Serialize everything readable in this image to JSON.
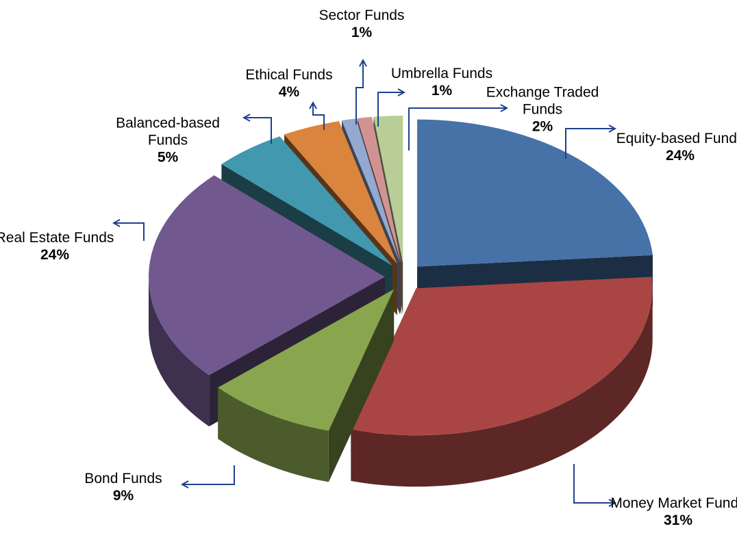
{
  "chart_data": {
    "type": "pie",
    "categories": [
      "Equity-based Funds",
      "Money Market Funds",
      "Bond Funds",
      "Real Estate Funds",
      "Balanced-based Funds",
      "Ethical Funds",
      "Sector Funds",
      "Umbrella Funds",
      "Exchange Traded Funds"
    ],
    "values": [
      24,
      31,
      9,
      24,
      5,
      4,
      1,
      1,
      2
    ],
    "value_labels": [
      "24%",
      "31%",
      "9%",
      "24%",
      "5%",
      "4%",
      "1%",
      "1%",
      "2%"
    ],
    "colors": [
      "#4672a8",
      "#a94644",
      "#89a54e",
      "#71588f",
      "#4198af",
      "#db843d",
      "#93a9cf",
      "#d19392",
      "#b9cd96"
    ]
  }
}
